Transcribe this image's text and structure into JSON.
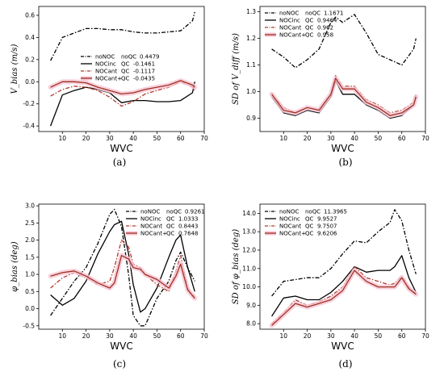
{
  "colors": {
    "noNOC": "#000000",
    "NOCinc": "#000000",
    "NOCant": "#b03a2e",
    "NOCantplus": "#a03020",
    "band": "#f6c6d6"
  },
  "chart_data": [
    {
      "type": "line",
      "panel_label": "(a)",
      "xlabel": "WVC",
      "ylabel": "V_bias (m/s)",
      "xlim": [
        0,
        70
      ],
      "ylim": [
        -0.45,
        0.68
      ],
      "xticks": [
        10,
        20,
        30,
        40,
        50,
        60,
        70
      ],
      "yticks": [
        -0.4,
        -0.2,
        0.0,
        0.2,
        0.4,
        0.6
      ],
      "legend_position": "center",
      "legend": [
        {
          "name": "noNOC",
          "qc_label": "noQC",
          "value": "0.4479"
        },
        {
          "name": "NOCinc",
          "qc_label": "QC",
          "value": "-0.1461"
        },
        {
          "name": "NOCant",
          "qc_label": "QC",
          "value": "-0.1117"
        },
        {
          "name": "NOCant+",
          "qc_label": "QC",
          "value": "-0.0435"
        }
      ],
      "x": [
        5,
        10,
        15,
        20,
        25,
        30,
        35,
        40,
        45,
        50,
        55,
        60,
        65,
        66
      ],
      "series": [
        {
          "name": "noNOC",
          "style": "dashdot",
          "values": [
            0.19,
            0.4,
            0.44,
            0.48,
            0.48,
            0.47,
            0.47,
            0.45,
            0.44,
            0.44,
            0.45,
            0.46,
            0.55,
            0.63
          ]
        },
        {
          "name": "NOCinc",
          "style": "solid",
          "values": [
            -0.4,
            -0.12,
            -0.08,
            -0.05,
            -0.07,
            -0.1,
            -0.19,
            -0.17,
            -0.17,
            -0.18,
            -0.18,
            -0.17,
            -0.1,
            0.0
          ]
        },
        {
          "name": "NOCant",
          "style": "dashdot",
          "values": [
            -0.13,
            -0.07,
            -0.04,
            -0.05,
            -0.08,
            -0.14,
            -0.22,
            -0.18,
            -0.11,
            -0.08,
            -0.05,
            0.0,
            -0.05,
            -0.08
          ]
        },
        {
          "name": "NOCant+",
          "style": "solid",
          "band": true,
          "values": [
            -0.05,
            0.0,
            0.0,
            -0.01,
            -0.05,
            -0.08,
            -0.11,
            -0.1,
            -0.07,
            -0.05,
            -0.03,
            0.01,
            -0.03,
            -0.05
          ]
        }
      ]
    },
    {
      "type": "line",
      "panel_label": "(b)",
      "xlabel": "WVC",
      "ylabel": "SD of V_diff (m/s)",
      "xlim": [
        0,
        70
      ],
      "ylim": [
        0.85,
        1.32
      ],
      "xticks": [
        10,
        20,
        30,
        40,
        50,
        60,
        70
      ],
      "yticks": [
        0.9,
        1.0,
        1.1,
        1.2,
        1.3
      ],
      "legend_position": "upper left",
      "legend": [
        {
          "name": "noNOC",
          "qc_label": "noQC",
          "value": "1.1671"
        },
        {
          "name": "NOCinc",
          "qc_label": "QC",
          "value": "0.9464"
        },
        {
          "name": "NOCant",
          "qc_label": "QC",
          "value": "0.962"
        },
        {
          "name": "NOCant+",
          "qc_label": "QC",
          "value": "0.958"
        }
      ],
      "x": [
        5,
        10,
        15,
        20,
        25,
        30,
        32,
        35,
        40,
        45,
        50,
        55,
        60,
        65,
        66
      ],
      "series": [
        {
          "name": "noNOC",
          "style": "dashdot",
          "values": [
            1.16,
            1.13,
            1.09,
            1.12,
            1.16,
            1.26,
            1.28,
            1.26,
            1.29,
            1.22,
            1.14,
            1.12,
            1.1,
            1.16,
            1.2
          ]
        },
        {
          "name": "NOCinc",
          "style": "solid",
          "values": [
            0.98,
            0.92,
            0.91,
            0.93,
            0.92,
            0.98,
            1.04,
            0.99,
            0.99,
            0.95,
            0.93,
            0.9,
            0.91,
            0.95,
            0.98
          ]
        },
        {
          "name": "NOCant",
          "style": "dashdot",
          "values": [
            0.99,
            0.94,
            0.92,
            0.94,
            0.93,
            0.99,
            1.06,
            1.02,
            1.02,
            0.97,
            0.95,
            0.92,
            0.93,
            0.96,
            0.99
          ]
        },
        {
          "name": "NOCant+",
          "style": "solid",
          "band": true,
          "values": [
            0.99,
            0.93,
            0.92,
            0.94,
            0.93,
            0.99,
            1.05,
            1.01,
            1.01,
            0.96,
            0.94,
            0.91,
            0.92,
            0.95,
            0.98
          ]
        }
      ]
    },
    {
      "type": "line",
      "panel_label": "(c)",
      "xlabel": "WVC",
      "ylabel": "φ_bias (deg)",
      "xlim": [
        0,
        70
      ],
      "ylim": [
        -0.6,
        3.05
      ],
      "xticks": [
        10,
        20,
        30,
        40,
        50,
        60,
        70
      ],
      "yticks": [
        -0.5,
        0.0,
        0.5,
        1.0,
        1.5,
        2.0,
        2.5,
        3.0
      ],
      "legend_position": "upper right",
      "legend": [
        {
          "name": "noNOC",
          "qc_label": "noQC",
          "value": "0.9261"
        },
        {
          "name": "NOCinc",
          "qc_label": "QC",
          "value": "1.0333"
        },
        {
          "name": "NOCant",
          "qc_label": "QC",
          "value": "0.8443"
        },
        {
          "name": "NOCant+",
          "qc_label": "QC",
          "value": "0.7648"
        }
      ],
      "x": [
        5,
        10,
        15,
        20,
        25,
        30,
        32,
        35,
        38,
        40,
        43,
        45,
        50,
        55,
        58,
        60,
        63,
        66
      ],
      "series": [
        {
          "name": "noNOC",
          "style": "dashdot",
          "values": [
            -0.2,
            0.3,
            0.8,
            1.2,
            1.9,
            2.75,
            2.9,
            2.4,
            1.0,
            -0.2,
            -0.5,
            -0.5,
            0.3,
            0.8,
            1.4,
            1.65,
            1.2,
            0.8
          ]
        },
        {
          "name": "NOCinc",
          "style": "solid",
          "values": [
            0.4,
            0.1,
            0.3,
            0.8,
            1.6,
            2.25,
            2.45,
            2.55,
            1.6,
            0.7,
            -0.1,
            0.0,
            0.6,
            1.5,
            2.0,
            2.15,
            1.2,
            0.5
          ]
        },
        {
          "name": "NOCant",
          "style": "dashdot",
          "values": [
            0.6,
            0.9,
            1.05,
            0.9,
            0.7,
            0.8,
            1.2,
            2.0,
            1.8,
            1.3,
            1.2,
            1.0,
            0.7,
            0.5,
            1.1,
            1.55,
            0.6,
            0.35
          ]
        },
        {
          "name": "NOCant+",
          "style": "solid",
          "band": true,
          "values": [
            0.95,
            1.05,
            1.1,
            0.95,
            0.75,
            0.6,
            0.75,
            1.55,
            1.45,
            1.2,
            1.15,
            1.0,
            0.85,
            0.6,
            0.95,
            1.3,
            0.55,
            0.3
          ]
        }
      ]
    },
    {
      "type": "line",
      "panel_label": "(d)",
      "xlabel": "WVC",
      "ylabel": "SD of φ_bias (deg)",
      "xlim": [
        0,
        70
      ],
      "ylim": [
        7.7,
        14.5
      ],
      "xticks": [
        10,
        20,
        30,
        40,
        50,
        60,
        70
      ],
      "yticks": [
        8,
        9,
        10,
        11,
        12,
        13,
        14
      ],
      "legend_position": "upper left",
      "legend": [
        {
          "name": "noNOC",
          "qc_label": "noQC",
          "value": "11.3965"
        },
        {
          "name": "NOCinc",
          "qc_label": "QC",
          "value": "9.9527"
        },
        {
          "name": "NOCant",
          "qc_label": "QC",
          "value": "9.7507"
        },
        {
          "name": "NOCant+",
          "qc_label": "QC",
          "value": "9.6206"
        }
      ],
      "x": [
        5,
        10,
        15,
        20,
        25,
        30,
        35,
        40,
        45,
        50,
        55,
        57,
        60,
        63,
        66
      ],
      "series": [
        {
          "name": "noNOC",
          "style": "dashdot",
          "values": [
            9.5,
            10.3,
            10.4,
            10.5,
            10.5,
            11.0,
            11.8,
            12.5,
            12.4,
            13.0,
            13.5,
            14.2,
            13.6,
            12.0,
            10.7
          ]
        },
        {
          "name": "NOCinc",
          "style": "solid",
          "values": [
            8.4,
            9.4,
            9.5,
            9.3,
            9.3,
            9.7,
            10.3,
            11.1,
            10.8,
            10.9,
            10.9,
            11.1,
            11.7,
            10.5,
            9.7
          ]
        },
        {
          "name": "NOCant",
          "style": "dashdot",
          "values": [
            8.0,
            8.6,
            9.3,
            9.0,
            9.2,
            9.5,
            10.0,
            11.1,
            10.5,
            10.3,
            10.1,
            10.2,
            10.6,
            10.0,
            9.6
          ]
        },
        {
          "name": "NOCant+",
          "style": "solid",
          "band": true,
          "values": [
            7.9,
            8.5,
            9.1,
            8.9,
            9.1,
            9.3,
            9.8,
            10.9,
            10.3,
            10.0,
            10.0,
            10.0,
            10.5,
            9.9,
            9.6
          ]
        }
      ]
    }
  ]
}
